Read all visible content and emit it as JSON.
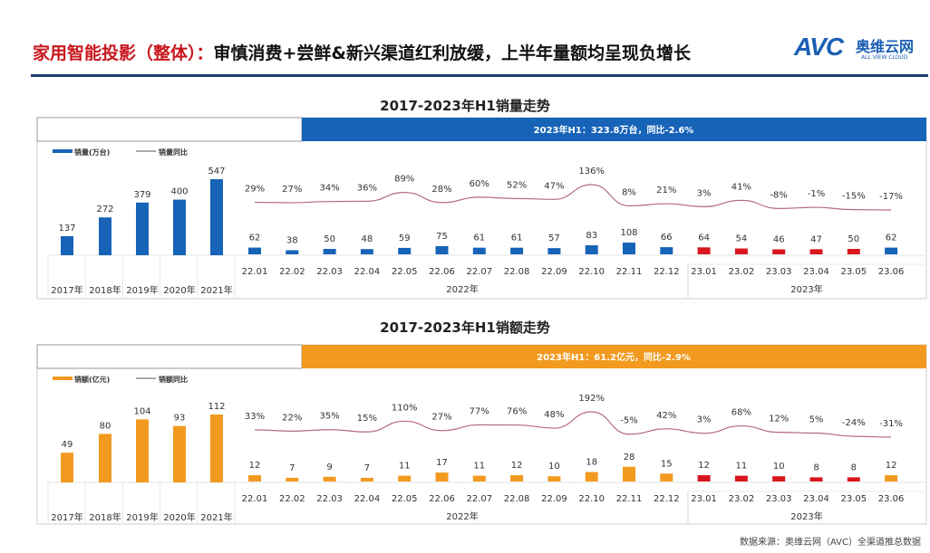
{
  "header": {
    "title_red": "家用智能投影（整体）：",
    "title_black": "审慎消费+尝鲜&新兴渠道红利放缓，上半年量额均呈现负增长",
    "logo_text": "AVC",
    "logo_cn": "奥维云网",
    "logo_en": "ALL VIEW CLOUD"
  },
  "colors": {
    "blue": "#1763b8",
    "orange": "#f29a1f",
    "red": "#d9161d",
    "line": "#b56b7a",
    "header_red": "#c8161d"
  },
  "source": "数据来源：奥维云网（AVC）全渠道推总数据",
  "chart_data": [
    {
      "type": "bar",
      "title": "2017-2023年H1销量走势",
      "banner": "2023年H1：323.8万台，同比-2.6%",
      "legend_bar": "销量(万台)",
      "legend_line": "销量同比",
      "annual_categories": [
        "2017年",
        "2018年",
        "2019年",
        "2020年",
        "2021年"
      ],
      "annual_values": [
        137,
        272,
        379,
        400,
        547
      ],
      "annual_labels": [
        "137",
        "272",
        "379",
        "400",
        "547"
      ],
      "monthly_categories": [
        "22.01",
        "22.02",
        "22.03",
        "22.04",
        "22.05",
        "22.06",
        "22.07",
        "22.08",
        "22.09",
        "22.10",
        "22.11",
        "22.12",
        "23.01",
        "23.02",
        "23.03",
        "23.04",
        "23.05",
        "23.06"
      ],
      "monthly_values": [
        62,
        38,
        50,
        48,
        59,
        75,
        61,
        61,
        57,
        83,
        108,
        66,
        64,
        54,
        46,
        47,
        50,
        62
      ],
      "monthly_labels": [
        "62",
        "38",
        "50",
        "48",
        "59",
        "75",
        "61",
        "61",
        "57",
        "83",
        "108",
        "66",
        "64",
        "54",
        "46",
        "47",
        "50",
        "62"
      ],
      "yoy": [
        29,
        27,
        34,
        36,
        89,
        28,
        60,
        52,
        47,
        136,
        8,
        21,
        3,
        41,
        -8,
        -1,
        -15,
        -17
      ],
      "yoy_labels": [
        "29%",
        "27%",
        "34%",
        "36%",
        "89%",
        "28%",
        "60%",
        "52%",
        "47%",
        "136%",
        "8%",
        "21%",
        "3%",
        "41%",
        "-8%",
        "-1%",
        "-15%",
        "-17%"
      ],
      "highlight": [
        false,
        false,
        false,
        false,
        false,
        false,
        false,
        false,
        false,
        false,
        false,
        false,
        true,
        true,
        true,
        true,
        true,
        false
      ],
      "year_groups": [
        "2022年",
        "2023年"
      ]
    },
    {
      "type": "bar",
      "title": "2017-2023年H1销额走势",
      "banner": "2023年H1：61.2亿元，同比-2.9%",
      "legend_bar": "销额(亿元)",
      "legend_line": "销额同比",
      "annual_categories": [
        "2017年",
        "2018年",
        "2019年",
        "2020年",
        "2021年"
      ],
      "annual_values": [
        49,
        80,
        104,
        93,
        112
      ],
      "annual_labels": [
        "49",
        "80",
        "104",
        "93",
        "112"
      ],
      "monthly_categories": [
        "22.01",
        "22.02",
        "22.03",
        "22.04",
        "22.05",
        "22.06",
        "22.07",
        "22.08",
        "22.09",
        "22.10",
        "22.11",
        "22.12",
        "23.01",
        "23.02",
        "23.03",
        "23.04",
        "23.05",
        "23.06"
      ],
      "monthly_values": [
        12,
        7,
        9,
        7,
        11,
        17,
        11,
        12,
        10,
        18,
        28,
        15,
        12,
        11,
        10,
        8,
        8,
        12
      ],
      "monthly_labels": [
        "12",
        "7",
        "9",
        "7",
        "11",
        "17",
        "11",
        "12",
        "10",
        "18",
        "28",
        "15",
        "12",
        "11",
        "10",
        "8",
        "8",
        "12"
      ],
      "yoy": [
        33,
        22,
        35,
        15,
        110,
        27,
        77,
        76,
        48,
        192,
        -5,
        42,
        3,
        68,
        12,
        5,
        -24,
        -31
      ],
      "yoy_labels": [
        "33%",
        "22%",
        "35%",
        "15%",
        "110%",
        "27%",
        "77%",
        "76%",
        "48%",
        "192%",
        "-5%",
        "42%",
        "3%",
        "68%",
        "12%",
        "5%",
        "-24%",
        "-31%"
      ],
      "highlight": [
        false,
        false,
        false,
        false,
        false,
        false,
        false,
        false,
        false,
        false,
        false,
        false,
        true,
        true,
        true,
        true,
        true,
        false
      ],
      "year_groups": [
        "2022年",
        "2023年"
      ]
    }
  ]
}
